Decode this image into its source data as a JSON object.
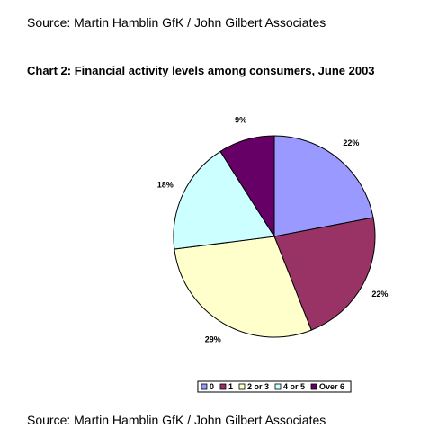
{
  "header": {
    "source": "Source: Martin Hamblin GfK / John Gilbert Associates"
  },
  "chart_data": {
    "type": "pie",
    "title": "Chart 2: Financial activity levels among consumers, June 2003",
    "categories": [
      "0",
      "1",
      "2 or 3",
      "4 or 5",
      "Over 6"
    ],
    "values": [
      22,
      22,
      29,
      18,
      9
    ],
    "value_labels": [
      "22%",
      "22%",
      "29%",
      "18%",
      "9%"
    ],
    "colors": [
      "#9999ff",
      "#993366",
      "#ffffcc",
      "#ccffff",
      "#660066"
    ],
    "legend": "bottom"
  },
  "footer": {
    "source": "Source: Martin Hamblin GfK / John Gilbert Associates"
  }
}
